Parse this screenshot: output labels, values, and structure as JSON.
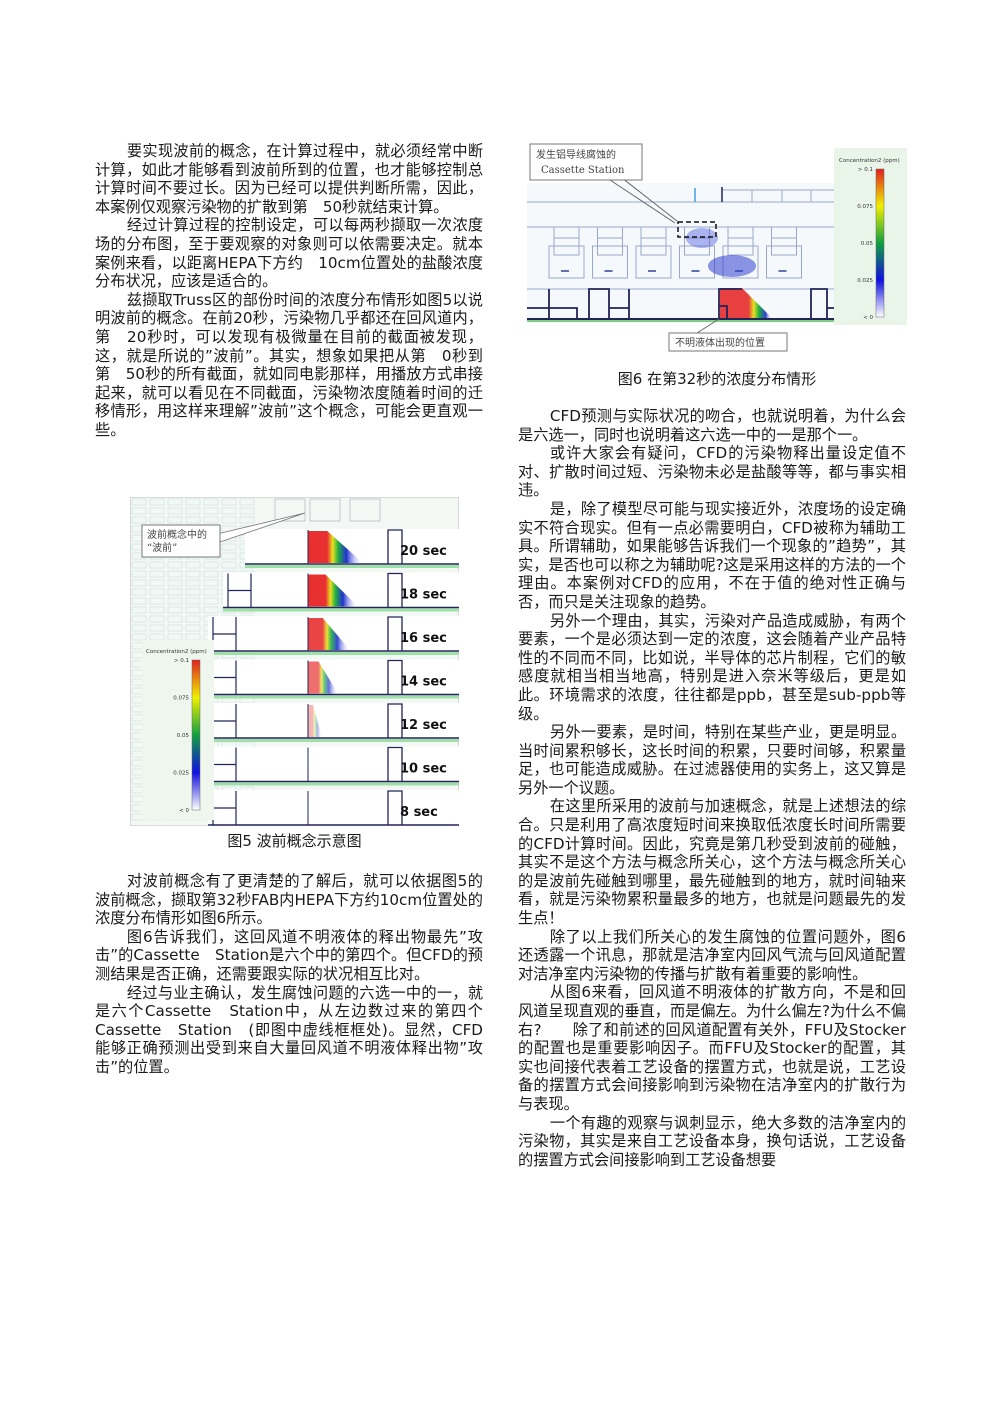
{
  "left_column": {
    "paragraphs_top": [
      "要实现波前的概念，在计算过程中，就必须经常中断计算，如此才能够看到波前所到的位置，也才能够控制总计算时间不要过长。因为已经可以提供判断所需，因此，本案例仅观察污染物的扩散到第　50秒就结束计算。",
      "经过计算过程的控制设定，可以每两秒撷取一次浓度场的分布图，至于要观察的对象则可以依需要决定。就本案例来看，以距离HEPA下方约　10cm位置处的盐酸浓度分布状况，应该是适合的。",
      "兹撷取Truss区的部份时间的浓度分布情形如图5以说明波前的概念。在前20秒，污染物几乎都还在回风道内，第　20秒时，可以发现有极微量在目前的截面被发现，这，就是所说的”波前”。其实，想象如果把从第　0秒到第　50秒的所有截面，就如同电影那样，用播放方式串接起来，就可以看见在不同截面，污染物浓度随着时间的迁移情形，用这样来理解”波前”这个概念，可能会更直观一些。"
    ],
    "paragraphs_bottom": [
      "对波前概念有了更清楚的了解后，就可以依据图5的波前概念，撷取第32秒FAB内HEPA下方约10cm位置处的浓度分布情形如图6所示。",
      "图6告诉我们，这回风道不明液体的释出物最先”攻击”的Cassette　Station是六个中的第四个。但CFD的预测结果是否正确，还需要跟实际的状况相互比对。",
      "经过与业主确认，发生腐蚀问题的六选一中的一，就是六个Cassette　Station中，从左边数过来的第四个Cassette　Station　(即图中虚线框框处)。显然，CFD能够正确预测出受到来自大量回风道不明液体释出物”攻击”的位置。"
    ]
  },
  "figure5": {
    "caption": "图5 波前概念示意图",
    "callout": [
      "波前概念中的",
      "“波前”"
    ],
    "time_labels": [
      "20 sec",
      "18 sec",
      "16 sec",
      "14 sec",
      "12 sec",
      "10 sec",
      "8 sec"
    ],
    "legend": {
      "title": "Concentration2 (ppm)",
      "ticks": [
        "> 0.1",
        "0.075",
        "0.05",
        "0.025",
        "< 0"
      ]
    }
  },
  "figure6": {
    "caption": "图6  在第32秒的浓度分布情形",
    "callout_top": [
      "发生铝导线腐蚀的",
      "Cassette Station"
    ],
    "callout_bottom": "不明液体出现的位置",
    "legend": {
      "title": "Concentration2 (ppm)",
      "ticks": [
        "> 0.1",
        "0.075",
        "0.05",
        "0.025",
        "< 0"
      ]
    }
  },
  "right_column": {
    "paragraphs": [
      "CFD预测与实际状况的吻合，也就说明着，为什么会是六选一，同时也说明着这六选一中的一是那个一。",
      "或许大家会有疑问，CFD的污染物释出量设定值不对、扩散时间过短、污染物未必是盐酸等等，都与事实相违。",
      "是，除了模型尽可能与现实接近外，浓度场的设定确实不符合现实。但有一点必需要明白，CFD被称为辅助工具。所谓辅助，如果能够告诉我们一个现象的”趋势”，其实，是否也可以称之为辅助呢?这是采用这样的方法的一个理由。本案例对CFD的应用，不在于值的绝对性正确与否，而只是关注现象的趋势。",
      "另外一个理由，其实，污染对产品造成威胁，有两个要素，一个是必须达到一定的浓度，这会随着产业产品特性的不同而不同，比如说，半导体的芯片制程，它们的敏感度就相当相当地高，特别是进入奈米等级后，更是如此。环境需求的浓度，往往都是ppb，甚至是sub-ppb等级。",
      "另外一要素，是时间，特别在某些产业，更是明显。当时间累积够长，这长时间的积累，只要时间够，积累量足，也可能造成威胁。在过滤器使用的实务上，这又算是另外一个议题。",
      "在这里所采用的波前与加速概念，就是上述想法的综合。只是利用了高浓度短时间来换取低浓度长时间所需要的CFD计算时间。因此，究竟是第几秒受到波前的碰触，其实不是这个方法与概念所关心，这个方法与概念所关心的是波前先碰触到哪里，最先碰触到的地方，就时间轴来看，就是污染物累积量最多的地方，也就是问题最先的发生点！",
      "除了以上我们所关心的发生腐蚀的位置问题外，图6还透露一个讯息，那就是洁净室内回风气流与回风道配置对洁净室内污染物的传播与扩散有着重要的影响性。",
      "从图6来看，回风道不明液体的扩散方向，不是和回风道呈现直观的垂直，而是偏左。为什么偏左?为什么不偏右?　　除了和前述的回风道配置有关外，FFU及Stocker的配置也是重要影响因子。而FFU及Stocker的配置，其实也间接代表着工艺设备的摆置方式，也就是说，工艺设备的摆置方式会间接影响到污染物在洁净室内的扩散行为与表现。",
      "一个有趣的观察与讽刺显示，绝大多数的洁净室内的污染物，其实是来自工艺设备本身，换句话说，工艺设备的摆置方式会间接影响到工艺设备想要"
    ]
  }
}
